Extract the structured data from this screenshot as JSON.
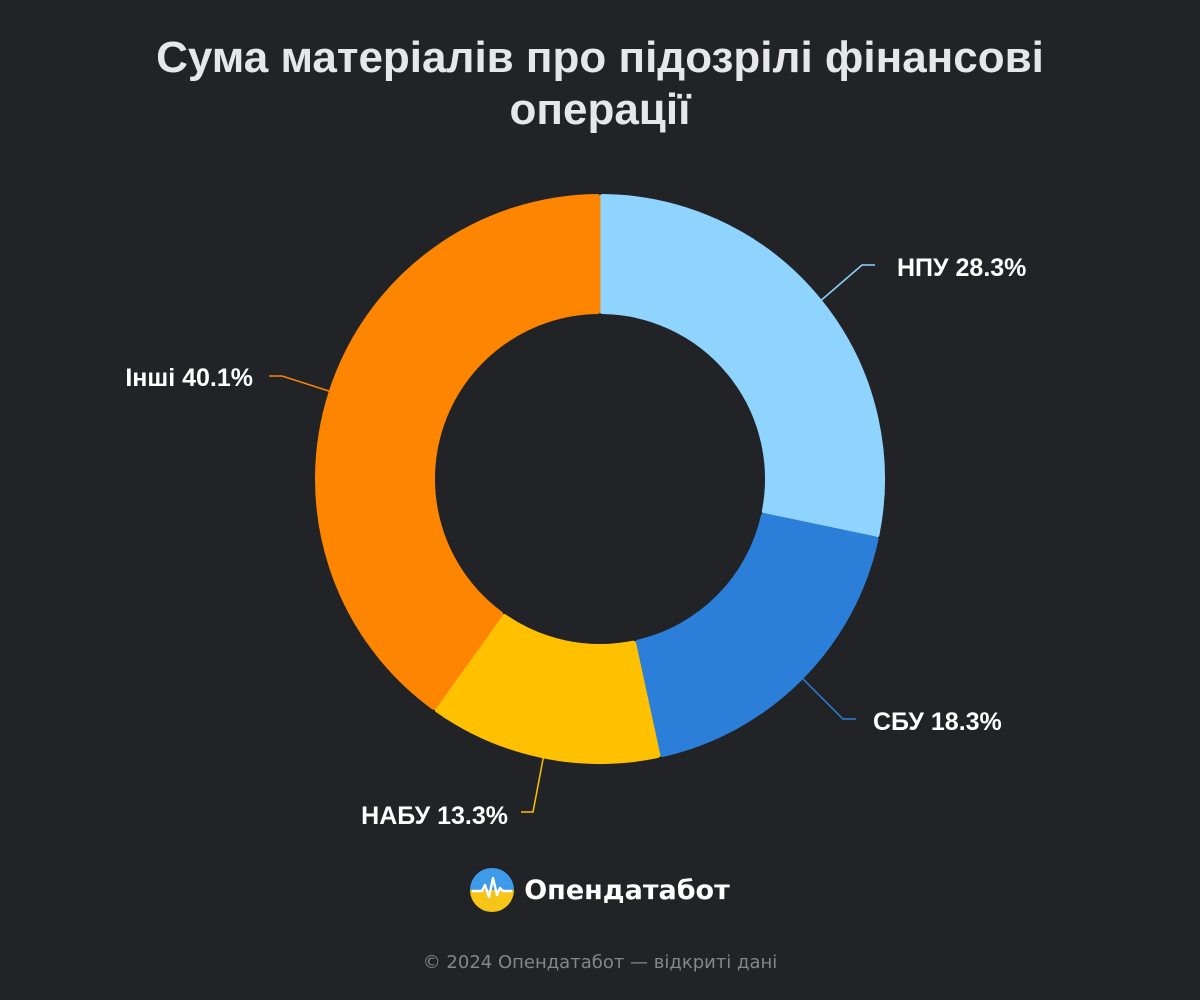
{
  "chart_data": {
    "type": "pie",
    "title": "Сума матеріалів про підозрілі фінансові операції",
    "slices": [
      {
        "label": "НПУ 28.3%",
        "value": 28.3,
        "color": "#8fd3ff"
      },
      {
        "label": "СБУ 18.3%",
        "value": 18.3,
        "color": "#2b7fd9"
      },
      {
        "label": "НАБУ 13.3%",
        "value": 13.3,
        "color": "#ffc000"
      },
      {
        "label": "Інші 40.1%",
        "value": 40.1,
        "color": "#fd8500"
      }
    ]
  },
  "brand": {
    "name": "Опендатабот",
    "logo_icon": "opendatabot-logo-icon"
  },
  "footer": {
    "text": "© 2024 Опендатабот — відкриті дані"
  }
}
